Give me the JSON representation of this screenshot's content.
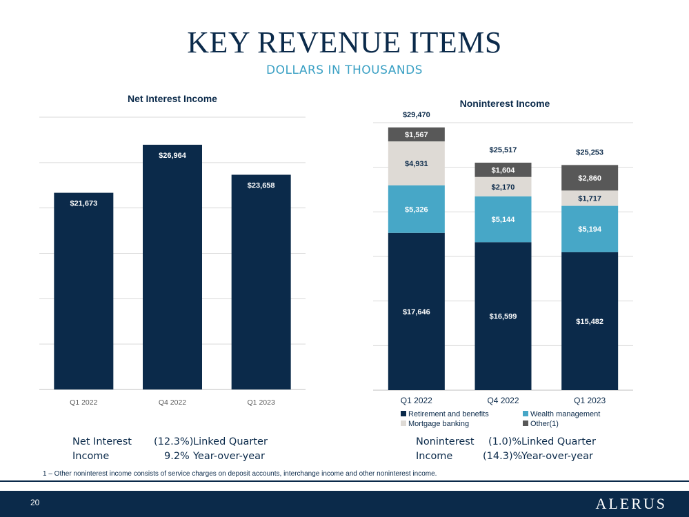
{
  "header": {
    "title": "KEY REVENUE ITEMS",
    "subtitle": "DOLLARS IN THOUSANDS"
  },
  "chart_data": [
    {
      "type": "bar",
      "title": "Net Interest Income",
      "categories": [
        "Q1 2022",
        "Q4 2022",
        "Q1 2023"
      ],
      "values": [
        21673,
        26964,
        23658
      ],
      "data_labels": [
        "$21,673",
        "$26,964",
        "$23,658"
      ],
      "ylim": [
        0,
        30000
      ],
      "grid": true,
      "color": "#0b2a4a"
    },
    {
      "type": "bar",
      "stacked": true,
      "title": "Noninterest Income",
      "categories": [
        "Q1 2022",
        "Q4 2022",
        "Q1 2023"
      ],
      "series": [
        {
          "name": "Retirement and benefits",
          "values": [
            17646,
            16599,
            15482
          ],
          "labels": [
            "$17,646",
            "$16,599",
            "$15,482"
          ],
          "color": "#0b2a4a",
          "label_color": "#ffffff"
        },
        {
          "name": "Wealth management",
          "values": [
            5326,
            5144,
            5194
          ],
          "labels": [
            "$5,326",
            "$5,144",
            "$5,194"
          ],
          "color": "#47a7c7",
          "label_color": "#ffffff"
        },
        {
          "name": "Mortgage banking",
          "values": [
            4931,
            2170,
            1717
          ],
          "labels": [
            "$4,931",
            "$2,170",
            "$1,717"
          ],
          "color": "#dedad5",
          "label_color": "#0b2a4a"
        },
        {
          "name": "Other(1)",
          "values": [
            1567,
            1604,
            2860
          ],
          "labels": [
            "$1,567",
            "$1,604",
            "$2,860"
          ],
          "color": "#585858",
          "label_color": "#ffffff"
        }
      ],
      "totals": [
        "$29,470",
        "$25,517",
        "$25,253"
      ],
      "ylim": [
        0,
        30000
      ],
      "grid": true,
      "legend_position": "bottom"
    }
  ],
  "summaries": [
    {
      "label_line1": "Net Interest",
      "label_line2": "Income",
      "value_line1": "(12.3%)",
      "desc_line1": "Linked Quarter",
      "value_line2": "9.2%",
      "desc_line2": "Year-over-year"
    },
    {
      "label_line1": "Noninterest",
      "label_line2": "Income",
      "value_line1": "(1.0)%",
      "desc_line1": "Linked Quarter",
      "value_line2": "(14.3)%",
      "desc_line2": "Year-over-year"
    }
  ],
  "footnote": "1 – Other noninterest income consists of service charges on deposit accounts, interchange income and other noninterest income.",
  "footer": {
    "page_number": "20",
    "logo_text": "ALERUS"
  }
}
